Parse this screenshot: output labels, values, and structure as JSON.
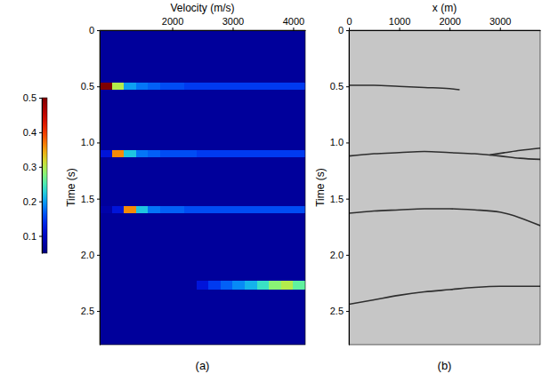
{
  "chart_data": [
    {
      "type": "heatmap",
      "title": "(a)",
      "x_label": "Velocity (m/s)",
      "y_label": "Time (s)",
      "xlim": [
        800,
        4200
      ],
      "xticks": [
        2000,
        3000,
        4000
      ],
      "ylim": [
        0,
        2.8
      ],
      "yticks": [
        0,
        0.5,
        {
          "value": 1,
          "label": "1.0"
        },
        1.5,
        {
          "value": 2,
          "label": "2.0"
        },
        2.5
      ],
      "x_edges": [
        800,
        1000,
        1200,
        1400,
        1600,
        1800,
        2000,
        2200,
        2400,
        2600,
        2800,
        3000,
        3200,
        3400,
        3600,
        3800,
        4000,
        4200
      ],
      "y_edges": [
        0,
        0.47,
        0.53,
        1.07,
        1.13,
        1.57,
        1.63,
        2.23,
        2.31,
        2.8
      ],
      "cells": [
        [
          0.07,
          0.07,
          0.07,
          0.07,
          0.07,
          0.07,
          0.07,
          0.07,
          0.07,
          0.07,
          0.07,
          0.07,
          0.07,
          0.07,
          0.07,
          0.07,
          0.07
        ],
        [
          0.5,
          0.3,
          0.2,
          0.18,
          0.17,
          0.16,
          0.16,
          0.15,
          0.15,
          0.15,
          0.15,
          0.15,
          0.15,
          0.15,
          0.15,
          0.15,
          0.15
        ],
        [
          0.07,
          0.07,
          0.07,
          0.07,
          0.07,
          0.07,
          0.07,
          0.07,
          0.07,
          0.07,
          0.07,
          0.07,
          0.07,
          0.07,
          0.07,
          0.07,
          0.07
        ],
        [
          0.12,
          0.36,
          0.22,
          0.18,
          0.17,
          0.16,
          0.16,
          0.16,
          0.15,
          0.15,
          0.15,
          0.15,
          0.15,
          0.15,
          0.15,
          0.15,
          0.15
        ],
        [
          0.07,
          0.07,
          0.07,
          0.07,
          0.07,
          0.07,
          0.07,
          0.07,
          0.07,
          0.07,
          0.07,
          0.07,
          0.07,
          0.07,
          0.07,
          0.07,
          0.07
        ],
        [
          0.08,
          0.12,
          0.36,
          0.22,
          0.18,
          0.17,
          0.17,
          0.16,
          0.16,
          0.16,
          0.16,
          0.16,
          0.16,
          0.16,
          0.16,
          0.16,
          0.16
        ],
        [
          0.07,
          0.07,
          0.07,
          0.07,
          0.07,
          0.07,
          0.07,
          0.07,
          0.07,
          0.07,
          0.07,
          0.07,
          0.07,
          0.07,
          0.07,
          0.07,
          0.07
        ],
        [
          0.07,
          0.07,
          0.07,
          0.07,
          0.07,
          0.07,
          0.07,
          0.07,
          0.12,
          0.15,
          0.17,
          0.19,
          0.21,
          0.24,
          0.28,
          0.3,
          0.26
        ],
        [
          0.07,
          0.07,
          0.07,
          0.07,
          0.07,
          0.07,
          0.07,
          0.07,
          0.07,
          0.07,
          0.07,
          0.07,
          0.07,
          0.07,
          0.07,
          0.07,
          0.07
        ]
      ],
      "colorbar": {
        "range": [
          0.05,
          0.5
        ],
        "ticks": [
          0.1,
          0.2,
          0.3,
          0.4,
          0.5
        ]
      }
    },
    {
      "type": "line",
      "title": "(b)",
      "x_label": "x (m)",
      "y_label": "Time (s)",
      "xlim": [
        0,
        3800
      ],
      "xticks": [
        0,
        1000,
        2000,
        3000
      ],
      "ylim": [
        0,
        2.8
      ],
      "yticks": [
        0,
        0.5,
        {
          "value": 1,
          "label": "1.0"
        },
        1.5,
        {
          "value": 2,
          "label": "2.0"
        },
        2.5
      ],
      "series": [
        {
          "color": "#2e2e2e",
          "x": [
            0,
            500,
            1000,
            1500,
            2000,
            2200
          ],
          "values": [
            0.49,
            0.49,
            0.5,
            0.51,
            0.52,
            0.53
          ]
        },
        {
          "color": "#2e2e2e",
          "x": [
            0,
            500,
            1000,
            1500,
            2000,
            2500,
            3000,
            3400,
            3800
          ],
          "values": [
            1.12,
            1.1,
            1.09,
            1.08,
            1.09,
            1.1,
            1.12,
            1.14,
            1.15
          ]
        },
        {
          "color": "#2e2e2e",
          "x": [
            2800,
            3100,
            3400,
            3800
          ],
          "values": [
            1.11,
            1.09,
            1.07,
            1.05
          ]
        },
        {
          "color": "#2e2e2e",
          "x": [
            0,
            500,
            1000,
            1500,
            2000,
            2500,
            3000,
            3400,
            3800
          ],
          "values": [
            1.63,
            1.61,
            1.6,
            1.59,
            1.59,
            1.6,
            1.62,
            1.67,
            1.74
          ]
        },
        {
          "color": "#2e2e2e",
          "x": [
            0,
            500,
            1000,
            1500,
            2000,
            2500,
            3000,
            3400,
            3800
          ],
          "values": [
            2.44,
            2.4,
            2.36,
            2.33,
            2.31,
            2.29,
            2.28,
            2.28,
            2.28
          ]
        }
      ]
    }
  ]
}
